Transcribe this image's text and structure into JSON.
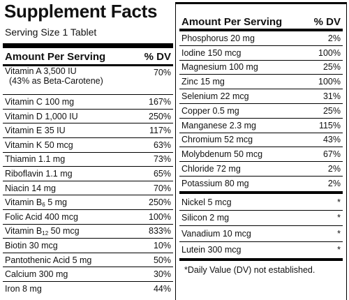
{
  "header": {
    "title": "Supplement Facts",
    "serving": "Serving Size 1 Tablet"
  },
  "left": {
    "heading": {
      "amount": "Amount Per Serving",
      "dv": "% DV"
    },
    "rows": [
      {
        "label": "Vitamin A 3,500 IU",
        "note": "(43% as Beta-Carotene)",
        "dv": "70%"
      },
      {
        "label": "Vitamin C 100 mg",
        "dv": "167%"
      },
      {
        "label": "Vitamin D 1,000 IU",
        "dv": "250%"
      },
      {
        "label": "Vitamin E 35 IU",
        "dv": "117%"
      },
      {
        "label": "Vitamin K 50 mcg",
        "dv": "63%"
      },
      {
        "label": "Thiamin 1.1 mg",
        "dv": "73%"
      },
      {
        "label": "Riboflavin 1.1 mg",
        "dv": "65%"
      },
      {
        "label": "Niacin 14 mg",
        "dv": "70%"
      },
      {
        "label": "Vitamin B",
        "sub": "6",
        "label_rest": " 5 mg",
        "dv": "250%"
      },
      {
        "label": "Folic Acid 400 mcg",
        "dv": "100%"
      },
      {
        "label": "Vitamin B",
        "sub": "12",
        "label_rest": " 50 mcg",
        "dv": "833%"
      },
      {
        "label": "Biotin 30 mcg",
        "dv": "10%"
      },
      {
        "label": "Pantothenic Acid 5 mg",
        "dv": "50%"
      },
      {
        "label": "Calcium 300 mg",
        "dv": "30%"
      },
      {
        "label": "Iron 8 mg",
        "dv": "44%"
      }
    ]
  },
  "right": {
    "heading": {
      "amount": "Amount Per Serving",
      "dv": "% DV"
    },
    "rows": [
      {
        "label": "Phosphorus 20 mg",
        "dv": "2%"
      },
      {
        "label": "Iodine 150 mcg",
        "dv": "100%"
      },
      {
        "label": "Magnesium 100 mg",
        "dv": "25%"
      },
      {
        "label": "Zinc 15 mg",
        "dv": "100%"
      },
      {
        "label": "Selenium 22 mcg",
        "dv": "31%"
      },
      {
        "label": "Copper 0.5 mg",
        "dv": "25%"
      },
      {
        "label": "Manganese 2.3 mg",
        "dv": "115%"
      },
      {
        "label": "Chromium 52 mcg",
        "dv": "43%"
      },
      {
        "label": "Molybdenum 50 mcg",
        "dv": "67%"
      },
      {
        "label": "Chloride 72 mg",
        "dv": "2%"
      },
      {
        "label": "Potassium 80 mg",
        "dv": "2%"
      }
    ],
    "other_rows": [
      {
        "label": "Nickel 5 mcg",
        "dv": "*"
      },
      {
        "label": "Silicon 2 mg",
        "dv": "*"
      },
      {
        "label": "Vanadium 10 mcg",
        "dv": "*"
      },
      {
        "label": "Lutein 300 mcg",
        "dv": "*"
      }
    ],
    "footnote": "*Daily Value (DV) not established."
  }
}
